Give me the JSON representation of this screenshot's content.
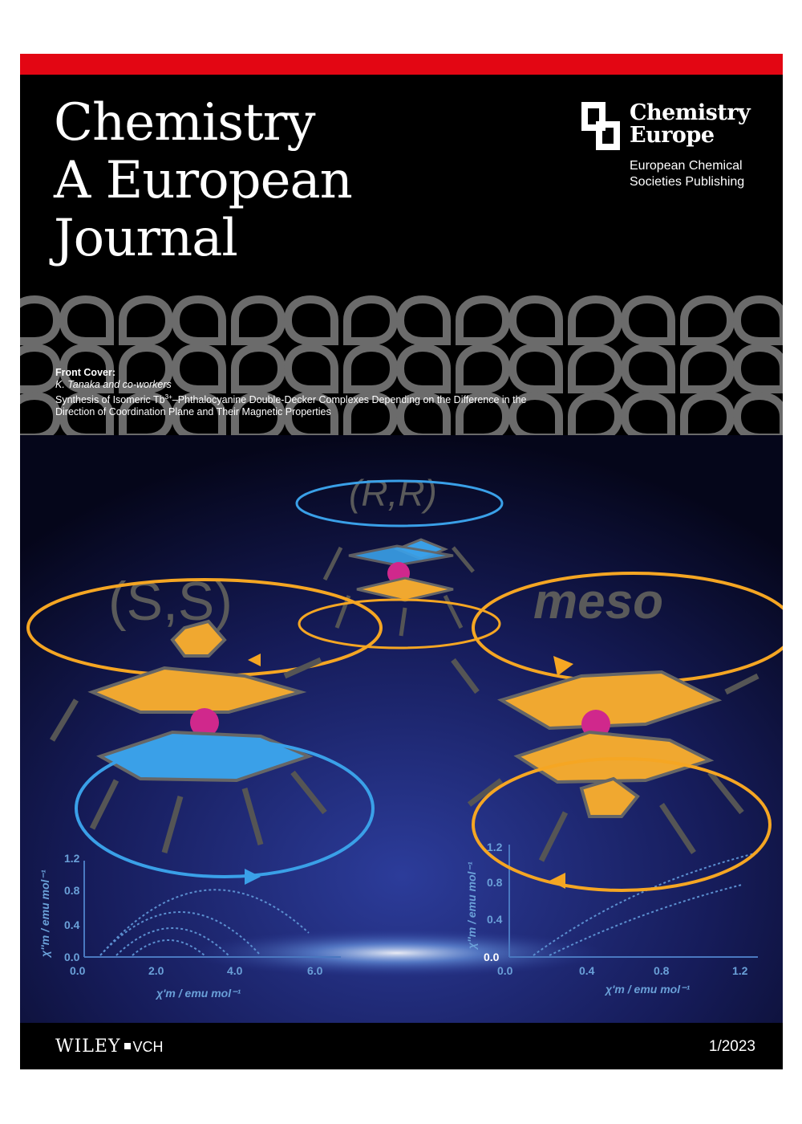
{
  "journal": {
    "title_lines": [
      "Chemistry",
      "A European",
      "Journal"
    ]
  },
  "publisher_logo": {
    "name_lines": [
      "Chemistry",
      "Europe"
    ],
    "sub_lines": [
      "European Chemical",
      "Societies Publishing"
    ]
  },
  "front_cover": {
    "label": "Front Cover:",
    "authors": "K. Tanaka and co-workers",
    "title_part1": "Synthesis of Isomeric Tb",
    "title_sup": "3+",
    "title_part2": "–Phthalocyanine Double-Decker Complexes Depending on the Difference in the",
    "title_line2": "Direction of Coordination Plane and Their Magnetic Properties"
  },
  "artwork": {
    "labels": {
      "rr": "(R,R)",
      "ss": "(S,S)",
      "meso": "meso"
    },
    "left_plot": {
      "ylabel": "χ''m / emu mol⁻¹",
      "xlabel": "χ'm / emu mol⁻¹",
      "yticks": [
        "0.0",
        "0.4",
        "0.8",
        "1.2"
      ],
      "xticks": [
        "0.0",
        "2.0",
        "4.0",
        "6.0"
      ]
    },
    "right_plot": {
      "ylabel": "χ''m / emu mol⁻¹",
      "xlabel": "χ'm / emu mol⁻¹",
      "yticks": [
        "0.0",
        "0.4",
        "0.8",
        "1.2"
      ],
      "xticks": [
        "0.0",
        "0.4",
        "0.8",
        "1.2"
      ]
    }
  },
  "footer": {
    "publisher": "WILEY",
    "imprint": "VCH",
    "issue": "1/2023"
  },
  "colors": {
    "red_bar": "#e30613",
    "background": "#000000",
    "orange_ring": "#f5a623",
    "blue_ring": "#3aa0e8",
    "pattern": "#6b6b6b"
  }
}
